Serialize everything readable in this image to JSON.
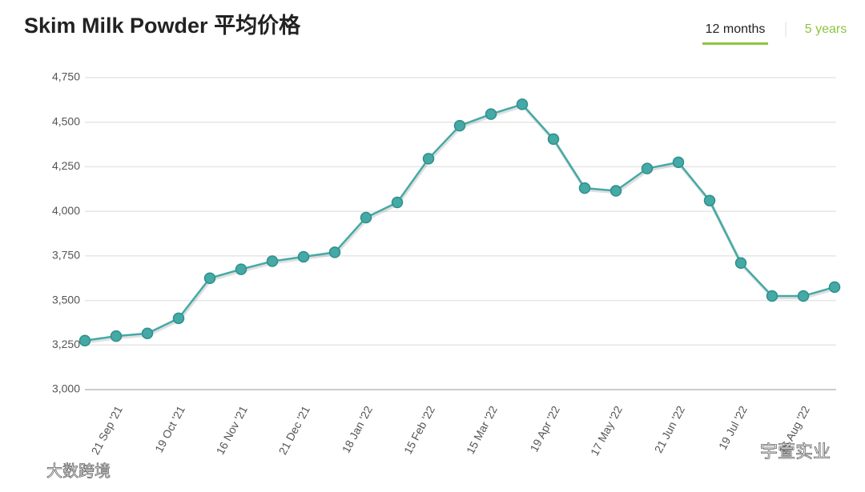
{
  "chart_data": {
    "type": "line",
    "title": "Skim Milk Powder 平均价格",
    "tabs": [
      "12 months",
      "5 years"
    ],
    "categories": [
      null,
      "21 Sep '21",
      null,
      "19 Oct '21",
      null,
      "16 Nov '21",
      null,
      "21 Dec '21",
      null,
      "18 Jan '22",
      null,
      "15 Feb '22",
      null,
      "15 Mar '22",
      null,
      "19 Apr '22",
      null,
      "17 May '22",
      null,
      "21 Jun '22",
      null,
      "19 Jul '22",
      null,
      "16 Aug '22",
      null
    ],
    "series": [
      {
        "name": "Skim Milk Powder",
        "color": "#45a9a6",
        "values": [
          3275,
          3300,
          3315,
          3400,
          3625,
          3675,
          3720,
          3745,
          3770,
          3965,
          4050,
          4295,
          4480,
          4545,
          4600,
          4405,
          4130,
          4115,
          4240,
          4275,
          4060,
          3710,
          3525,
          3525,
          3575
        ]
      }
    ],
    "ylim": [
      3000,
      4750
    ],
    "yticks": [
      {
        "value": 3000,
        "label": "3,000"
      },
      {
        "value": 3250,
        "label": "3,250"
      },
      {
        "value": 3500,
        "label": "3,500"
      },
      {
        "value": 3750,
        "label": "3,750"
      },
      {
        "value": 4000,
        "label": "4,000"
      },
      {
        "value": 4250,
        "label": "4,250"
      },
      {
        "value": 4500,
        "label": "4,500"
      },
      {
        "value": 4750,
        "label": "4,750"
      }
    ],
    "grid": true,
    "watermarks": [
      "宇萱实业",
      "大数跨境"
    ]
  }
}
